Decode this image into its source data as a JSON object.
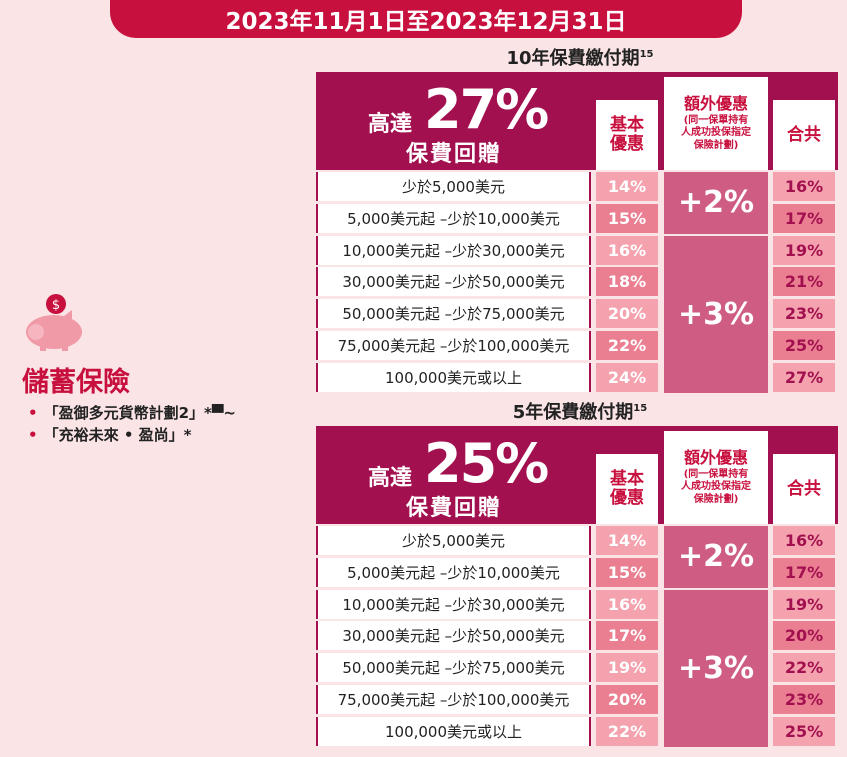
{
  "banner": {
    "text": "2023年11月1日至2023年12月31日"
  },
  "insurance": {
    "title": "儲蓄保險",
    "plans": [
      "「盈御多元貨幣計劃2」*▀~",
      "「充裕未來 • 盈尚」*"
    ]
  },
  "headers": {
    "up_to": "高達",
    "rebate": "保費回贈",
    "basic": [
      "基本",
      "優惠"
    ],
    "extra_title": "額外優惠",
    "extra_note": [
      "(同一保單持有",
      "人成功投保指定",
      "保險計劃)"
    ],
    "total": "合共"
  },
  "tables": [
    {
      "period": "10年保費繳付期",
      "footnote": "15",
      "max_pct": "27%",
      "extra_small": "+2%",
      "extra_large": "+3%",
      "rows": [
        {
          "tier": "少於5,000美元",
          "basic": "14%",
          "total": "16%"
        },
        {
          "tier": "5,000美元起 –少於10,000美元",
          "basic": "15%",
          "total": "17%"
        },
        {
          "tier": "10,000美元起 –少於30,000美元",
          "basic": "16%",
          "total": "19%"
        },
        {
          "tier": "30,000美元起 –少於50,000美元",
          "basic": "18%",
          "total": "21%"
        },
        {
          "tier": "50,000美元起 –少於75,000美元",
          "basic": "20%",
          "total": "23%"
        },
        {
          "tier": "75,000美元起 –少於100,000美元",
          "basic": "22%",
          "total": "25%"
        },
        {
          "tier": "100,000美元或以上",
          "basic": "24%",
          "total": "27%"
        }
      ]
    },
    {
      "period": "5年保費繳付期",
      "footnote": "15",
      "max_pct": "25%",
      "extra_small": "+2%",
      "extra_large": "+3%",
      "rows": [
        {
          "tier": "少於5,000美元",
          "basic": "14%",
          "total": "16%"
        },
        {
          "tier": "5,000美元起 –少於10,000美元",
          "basic": "15%",
          "total": "17%"
        },
        {
          "tier": "10,000美元起 –少於30,000美元",
          "basic": "16%",
          "total": "19%"
        },
        {
          "tier": "30,000美元起 –少於50,000美元",
          "basic": "17%",
          "total": "20%"
        },
        {
          "tier": "50,000美元起 –少於75,000美元",
          "basic": "19%",
          "total": "22%"
        },
        {
          "tier": "75,000美元起 –少於100,000美元",
          "basic": "20%",
          "total": "23%"
        },
        {
          "tier": "100,000美元或以上",
          "basic": "22%",
          "total": "25%"
        }
      ]
    }
  ]
}
